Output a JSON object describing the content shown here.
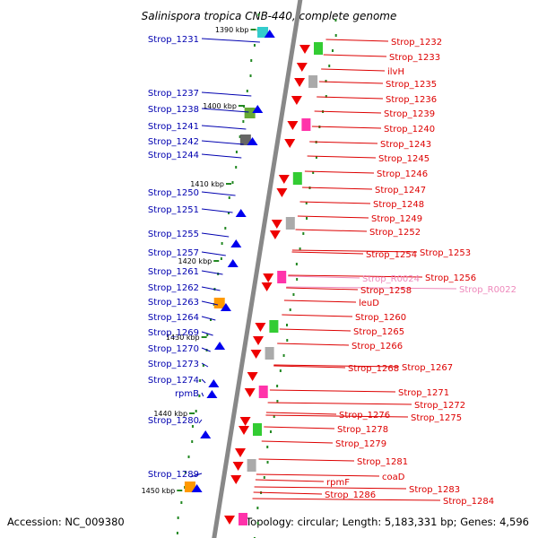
{
  "title": "Salinispora tropica CNB-440, complete genome",
  "footer": {
    "accession": "Accession: NC_009380",
    "summary": "Topology: circular; Length: 5,183,331 bp; Genes: 4,596"
  },
  "colors": {
    "left_label": "#0000b0",
    "right_label": "#dd0000",
    "rna_label": "#ee88bb",
    "backbone": "#888888",
    "tick": "#228822",
    "forward_gene": "#0000ee",
    "reverse_gene": "#ee0000"
  },
  "scale_labels": [
    "1390 kbp",
    "1400 kbp",
    "1410 kbp",
    "1420 kbp",
    "1430 kbp",
    "1440 kbp",
    "1450 kbp"
  ],
  "left_genes": [
    "Strop_1231",
    "Strop_1237",
    "Strop_1238",
    "Strop_1241",
    "Strop_1242",
    "Strop_1244",
    "Strop_1250",
    "Strop_1251",
    "Strop_1255",
    "Strop_1257",
    "Strop_1261",
    "Strop_1262",
    "Strop_1263",
    "Strop_1264",
    "Strop_1269",
    "Strop_1270",
    "Strop_1273",
    "Strop_1274",
    "rpmB",
    "Strop_1280",
    "Strop_1289"
  ],
  "right_genes": [
    "Strop_1232",
    "Strop_1233",
    "ilvH",
    "Strop_1235",
    "Strop_1236",
    "Strop_1239",
    "Strop_1240",
    "Strop_1243",
    "Strop_1245",
    "Strop_1246",
    "Strop_1247",
    "Strop_1248",
    "Strop_1249",
    "Strop_1252",
    "Strop_1253",
    "Strop_1254",
    "Strop_1256",
    "Strop_R0024",
    "Strop_R0022",
    "Strop_1258",
    "leuD",
    "Strop_1260",
    "Strop_1265",
    "Strop_1266",
    "Strop_1267",
    "Strop_1268",
    "Strop_1271",
    "Strop_1272",
    "Strop_1275",
    "Strop_1276",
    "Strop_1278",
    "Strop_1279",
    "Strop_1281",
    "coaD",
    "rpmF",
    "Strop_1283",
    "Strop_1286",
    "Strop_1284"
  ]
}
